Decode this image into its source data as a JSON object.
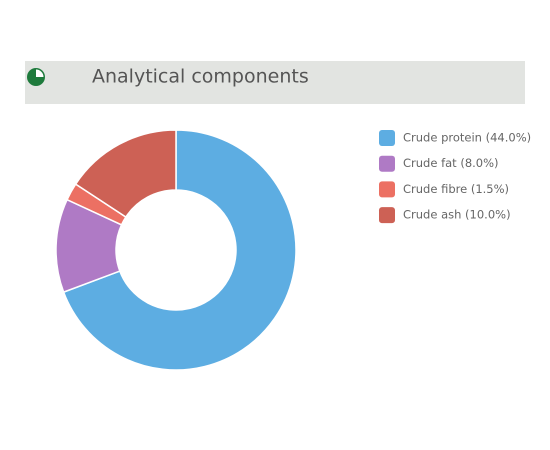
{
  "chart_data": {
    "type": "donut",
    "title": "Analytical components",
    "categories": [
      "Crude protein (44.0%)",
      "Crude fat (8.0%)",
      "Crude fibre (1.5%)",
      "Crude ash (10.0%)"
    ],
    "values": [
      44.0,
      8.0,
      1.5,
      10.0
    ],
    "colors": [
      "#5dade2",
      "#af7ac5",
      "#ec7063",
      "#cd6155"
    ]
  }
}
